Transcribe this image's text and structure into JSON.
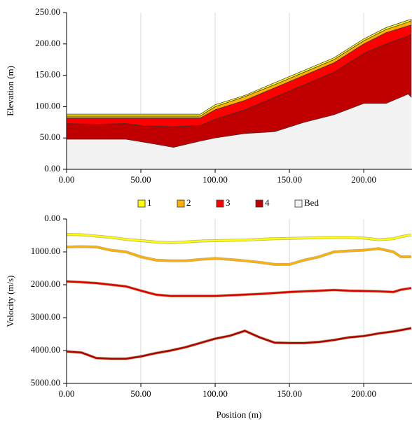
{
  "chart_data": [
    {
      "type": "area",
      "stacked": true,
      "y_label": "Elevation (m)",
      "x": [
        0,
        20,
        40,
        50,
        60,
        72,
        90,
        100,
        120,
        140,
        160,
        180,
        200,
        215,
        230,
        232
      ],
      "series": [
        {
          "name": "Bed",
          "color": "#f2f2f2",
          "values": [
            48,
            48,
            48,
            44,
            40,
            35,
            45,
            50,
            57,
            60,
            75,
            87,
            105,
            105,
            120,
            115
          ]
        },
        {
          "name": "4",
          "color": "#c00000",
          "values": [
            25,
            24,
            25,
            26,
            29,
            33,
            25,
            30,
            38,
            55,
            60,
            68,
            80,
            95,
            93,
            100
          ]
        },
        {
          "name": "3",
          "color": "#ff0000",
          "values": [
            9,
            10,
            9,
            12,
            13,
            14,
            12,
            15,
            15,
            15,
            15,
            15,
            15,
            18,
            16,
            15
          ]
        },
        {
          "name": "2",
          "color": "#ffb000",
          "values": [
            3,
            3,
            3,
            3,
            3,
            3,
            3,
            5,
            6,
            5,
            5,
            5,
            5,
            5,
            6,
            7
          ]
        },
        {
          "name": "1",
          "color": "#ffff00",
          "values": [
            3,
            3,
            3,
            3,
            3,
            3,
            3,
            3,
            2,
            3,
            3,
            3,
            3,
            3,
            3,
            2
          ]
        }
      ],
      "legend_order": [
        4,
        3,
        2,
        1,
        0
      ],
      "xlim": [
        0,
        232.5
      ],
      "xticks": [
        {
          "value": 0,
          "label": "0.00"
        },
        {
          "value": 50,
          "label": "50.00"
        },
        {
          "value": 100,
          "label": "100.00"
        },
        {
          "value": 150,
          "label": "150.00"
        },
        {
          "value": 200,
          "label": "200.00"
        }
      ],
      "ylim": [
        0,
        250
      ],
      "yticks": [
        {
          "value": 0,
          "label": "0.00"
        },
        {
          "value": 50,
          "label": "50.00"
        },
        {
          "value": 100,
          "label": "100.00"
        },
        {
          "value": 150,
          "label": "150.00"
        },
        {
          "value": 200,
          "label": "200.00"
        },
        {
          "value": 250,
          "label": "250.00"
        }
      ],
      "grid": "x"
    },
    {
      "type": "line",
      "y_label": "Velocity (m/s)",
      "x_label": "Position (m)",
      "x": [
        0,
        10,
        20,
        30,
        40,
        50,
        60,
        70,
        80,
        90,
        100,
        110,
        120,
        130,
        140,
        150,
        160,
        170,
        180,
        190,
        200,
        210,
        220,
        225,
        232
      ],
      "series": [
        {
          "color": "#ffff00",
          "values": [
            470,
            480,
            520,
            560,
            620,
            660,
            700,
            720,
            700,
            670,
            660,
            650,
            640,
            620,
            600,
            590,
            580,
            570,
            560,
            560,
            580,
            630,
            600,
            540,
            480
          ]
        },
        {
          "color": "#ffb000",
          "values": [
            850,
            840,
            850,
            950,
            1000,
            1150,
            1250,
            1270,
            1270,
            1230,
            1200,
            1230,
            1270,
            1320,
            1380,
            1380,
            1250,
            1150,
            1000,
            970,
            950,
            900,
            1000,
            1150,
            1150
          ]
        },
        {
          "color": "#e00000",
          "values": [
            1900,
            1920,
            1950,
            2000,
            2050,
            2180,
            2300,
            2340,
            2340,
            2340,
            2340,
            2320,
            2300,
            2280,
            2250,
            2220,
            2200,
            2180,
            2160,
            2180,
            2190,
            2200,
            2220,
            2150,
            2100
          ]
        },
        {
          "color": "#b00000",
          "values": [
            4030,
            4060,
            4230,
            4250,
            4250,
            4180,
            4080,
            4000,
            3900,
            3770,
            3640,
            3550,
            3400,
            3600,
            3760,
            3770,
            3770,
            3740,
            3680,
            3600,
            3560,
            3480,
            3420,
            3380,
            3320
          ]
        }
      ],
      "xlim": [
        0,
        232.5
      ],
      "xticks": [
        {
          "value": 0,
          "label": "0.00"
        },
        {
          "value": 50,
          "label": "50.00"
        },
        {
          "value": 100,
          "label": "100.00"
        },
        {
          "value": 150,
          "label": "150.00"
        },
        {
          "value": 200,
          "label": "200.00"
        }
      ],
      "ylim": [
        0,
        5000
      ],
      "y_reversed": true,
      "yticks": [
        {
          "value": 0,
          "label": "0.00"
        },
        {
          "value": 1000,
          "label": "1000.00"
        },
        {
          "value": 2000,
          "label": "2000.00"
        },
        {
          "value": 3000,
          "label": "3000.00"
        },
        {
          "value": 4000,
          "label": "4000.00"
        },
        {
          "value": 5000,
          "label": "5000.00"
        }
      ],
      "grid": "x"
    }
  ]
}
